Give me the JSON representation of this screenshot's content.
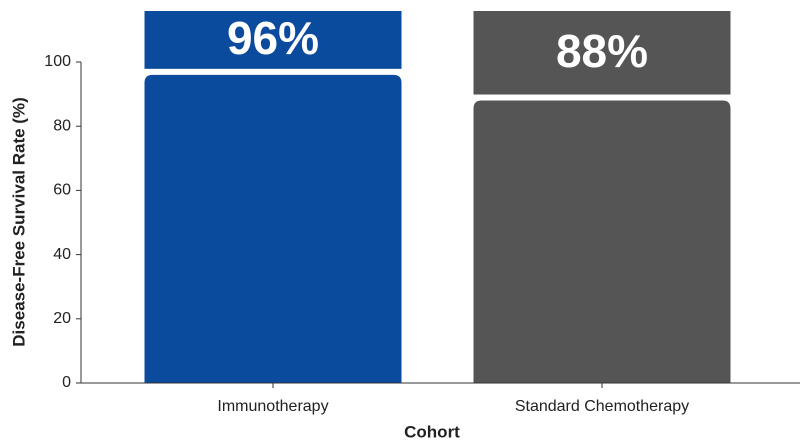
{
  "chart_data": {
    "type": "bar",
    "categories": [
      "Immunotherapy",
      "Standard Chemotherapy"
    ],
    "values": [
      96,
      88
    ],
    "value_labels": [
      "96%",
      "88%"
    ],
    "colors": [
      "#0b4b9e",
      "#555555"
    ],
    "x_label": "Cohort",
    "y_label": "Disease-Free Survival Rate (%)",
    "ylim": [
      0,
      100
    ],
    "yticks": [
      0,
      20,
      40,
      60,
      80,
      100
    ]
  }
}
